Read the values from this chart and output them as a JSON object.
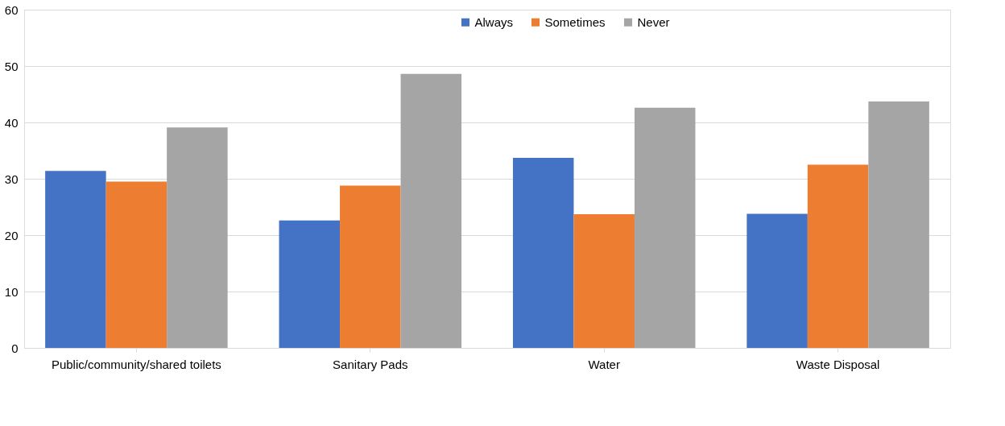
{
  "chart_data": {
    "type": "bar",
    "categories": [
      "Public/community/shared toilets",
      "Sanitary Pads",
      "Water",
      "Waste Disposal"
    ],
    "series": [
      {
        "name": "Always",
        "color": "#4472c4",
        "values": [
          31.4,
          22.6,
          33.7,
          23.8
        ]
      },
      {
        "name": "Sometimes",
        "color": "#ed7d31",
        "values": [
          29.5,
          28.8,
          23.7,
          32.5
        ]
      },
      {
        "name": "Never",
        "color": "#a5a5a5",
        "values": [
          39.1,
          48.6,
          42.6,
          43.7
        ]
      }
    ],
    "ylim": [
      0,
      60
    ],
    "yticks": [
      0,
      10,
      20,
      30,
      40,
      50,
      60
    ],
    "grid": "y",
    "legend": "top"
  }
}
